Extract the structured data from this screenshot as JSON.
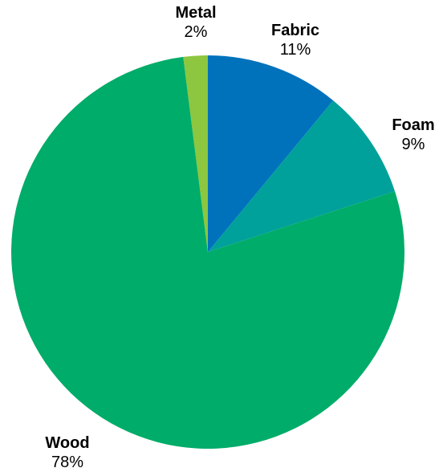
{
  "chart_data": {
    "type": "pie",
    "start_angle_deg": 0,
    "direction": "clockwise",
    "slices": [
      {
        "label": "Fabric",
        "value": 11,
        "display": "11%",
        "color": "#0072bc"
      },
      {
        "label": "Foam",
        "value": 9,
        "display": "9%",
        "color": "#00a19a"
      },
      {
        "label": "Wood",
        "value": 78,
        "display": "78%",
        "color": "#00ac69"
      },
      {
        "label": "Metal",
        "value": 2,
        "display": "2%",
        "color": "#8dc63f"
      }
    ]
  }
}
